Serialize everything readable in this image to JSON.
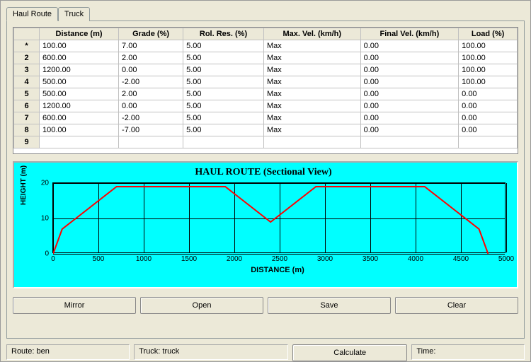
{
  "tabs": {
    "haul_route": "Haul Route",
    "truck": "Truck"
  },
  "table": {
    "columns": [
      "Distance (m)",
      "Grade (%)",
      "Rol. Res. (%)",
      "Max. Vel. (km/h)",
      "Final Vel. (km/h)",
      "Load (%)"
    ],
    "row_labels": [
      "*",
      "2",
      "3",
      "4",
      "5",
      "6",
      "7",
      "8",
      "9"
    ],
    "rows": [
      [
        "100.00",
        "7.00",
        "5.00",
        "Max",
        "0.00",
        "100.00"
      ],
      [
        "600.00",
        "2.00",
        "5.00",
        "Max",
        "0.00",
        "100.00"
      ],
      [
        "1200.00",
        "0.00",
        "5.00",
        "Max",
        "0.00",
        "100.00"
      ],
      [
        "500.00",
        "-2.00",
        "5.00",
        "Max",
        "0.00",
        "100.00"
      ],
      [
        "500.00",
        "2.00",
        "5.00",
        "Max",
        "0.00",
        "0.00"
      ],
      [
        "1200.00",
        "0.00",
        "5.00",
        "Max",
        "0.00",
        "0.00"
      ],
      [
        "600.00",
        "-2.00",
        "5.00",
        "Max",
        "0.00",
        "0.00"
      ],
      [
        "100.00",
        "-7.00",
        "5.00",
        "Max",
        "0.00",
        "0.00"
      ],
      [
        "",
        "",
        "",
        "",
        "",
        ""
      ]
    ]
  },
  "chart": {
    "title": "HAUL ROUTE (Sectional View)",
    "xaxis_label": "DISTANCE (m)",
    "yaxis_label": "HEIGHT (m)",
    "background_color": "#00ffff",
    "line_color": "#ff0000",
    "line_width": 2,
    "grid_color": "#000000",
    "xlim": [
      0,
      5000
    ],
    "ylim": [
      0,
      20
    ],
    "xticks": [
      0,
      500,
      1000,
      1500,
      2000,
      2500,
      3000,
      3500,
      4000,
      4500,
      5000
    ],
    "yticks": [
      0,
      10,
      20
    ],
    "series": [
      {
        "x": 0,
        "y": 0
      },
      {
        "x": 100,
        "y": 7
      },
      {
        "x": 700,
        "y": 19
      },
      {
        "x": 1900,
        "y": 19
      },
      {
        "x": 2400,
        "y": 9
      },
      {
        "x": 2900,
        "y": 19
      },
      {
        "x": 4100,
        "y": 19
      },
      {
        "x": 4700,
        "y": 7
      },
      {
        "x": 4800,
        "y": 0
      }
    ],
    "title_fontsize": 14,
    "label_fontsize": 11,
    "tick_fontsize": 10
  },
  "buttons": {
    "mirror": "Mirror",
    "open": "Open",
    "save": "Save",
    "clear": "Clear"
  },
  "status": {
    "route": "Route: ben",
    "truck": "Truck: truck",
    "calculate": "Calculate",
    "time": "Time:"
  }
}
